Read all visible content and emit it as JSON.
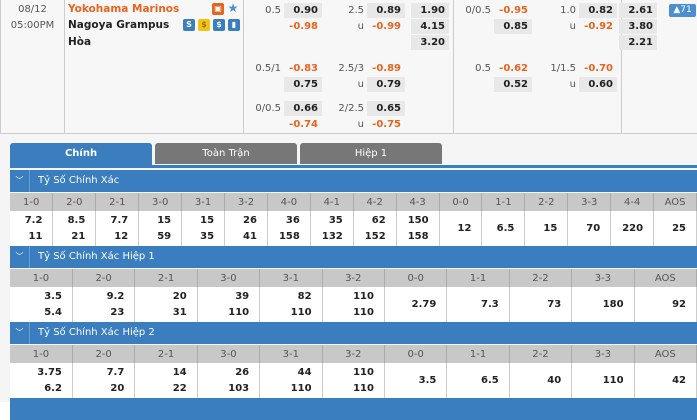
{
  "match": {
    "date": "08/12",
    "time": "05:00PM",
    "home": "Yokohama Marinos",
    "away": "Nagoya Grampus",
    "draw": "Hòa",
    "more_badge": "▲71",
    "icons": [
      "live-icon",
      "star-icon",
      "stats-s-icon",
      "coin-icon",
      "dollar-icon",
      "chart-icon"
    ],
    "ft": {
      "hdp": [
        {
          "line": "0.5",
          "home": "0.90",
          "away": "-0.98"
        },
        {
          "line": "0.5/1",
          "home": "-0.83",
          "away": "0.75"
        },
        {
          "line": "0/0.5",
          "home": "0.66",
          "away": "-0.74"
        }
      ],
      "ou": [
        {
          "line": "2.5",
          "over": "0.89",
          "u": "u",
          "under": "-0.99"
        },
        {
          "line": "2.5/3",
          "over": "-0.89",
          "u": "u",
          "under": "0.79"
        },
        {
          "line": "2/2.5",
          "over": "0.65",
          "u": "u",
          "under": "-0.75"
        }
      ],
      "x12": [
        "1.90",
        "4.15",
        "3.20"
      ]
    },
    "h1": {
      "hdp": [
        {
          "line": "0/0.5",
          "home": "-0.95",
          "away": "0.85"
        },
        {
          "line": "0.5",
          "home": "-0.62",
          "away": "0.52"
        }
      ],
      "ou": [
        {
          "line": "1.0",
          "over": "0.82",
          "u": "u",
          "under": "-0.92"
        },
        {
          "line": "1/1.5",
          "over": "-0.70",
          "u": "u",
          "under": "0.60"
        }
      ],
      "x12": [
        "2.61",
        "3.80",
        "2.21"
      ]
    }
  },
  "tabs": [
    "Chính",
    "Toàn Trận",
    "Hiệp 1"
  ],
  "sections": [
    {
      "title": "Tỷ Số Chính Xác",
      "headers": [
        "1-0",
        "2-0",
        "2-1",
        "3-0",
        "3-1",
        "3-2",
        "4-0",
        "4-1",
        "4-2",
        "4-3",
        "0-0",
        "1-1",
        "2-2",
        "3-3",
        "4-4",
        "AOS"
      ],
      "rows": [
        [
          "7.2",
          "8.5",
          "7.7",
          "15",
          "15",
          "26",
          "36",
          "35",
          "62",
          "150"
        ],
        [
          "11",
          "21",
          "12",
          "59",
          "35",
          "41",
          "158",
          "132",
          "152",
          "158"
        ]
      ],
      "single": [
        "12",
        "6.5",
        "15",
        "70",
        "220",
        "25"
      ]
    },
    {
      "title": "Tỷ Số Chính Xác Hiệp 1",
      "headers": [
        "1-0",
        "2-0",
        "2-1",
        "3-0",
        "3-1",
        "3-2",
        "0-0",
        "1-1",
        "2-2",
        "3-3",
        "AOS"
      ],
      "rows": [
        [
          "3.5",
          "9.2",
          "20",
          "39",
          "82",
          "110"
        ],
        [
          "5.4",
          "23",
          "31",
          "110",
          "110",
          "110"
        ]
      ],
      "single": [
        "2.79",
        "7.3",
        "73",
        "180",
        "92"
      ]
    },
    {
      "title": "Tỷ Số Chính Xác Hiệp 2",
      "headers": [
        "1-0",
        "2-0",
        "2-1",
        "3-0",
        "3-1",
        "3-2",
        "0-0",
        "1-1",
        "2-2",
        "3-3",
        "AOS"
      ],
      "rows": [
        [
          "3.75",
          "7.7",
          "14",
          "26",
          "44",
          "110"
        ],
        [
          "6.2",
          "20",
          "22",
          "103",
          "110",
          "110"
        ]
      ],
      "single": [
        "3.5",
        "6.5",
        "40",
        "110",
        "42"
      ]
    }
  ],
  "colors": {
    "accent": "#3a7ec0",
    "negative": "#e8641e",
    "home_team": "#e8641e"
  }
}
